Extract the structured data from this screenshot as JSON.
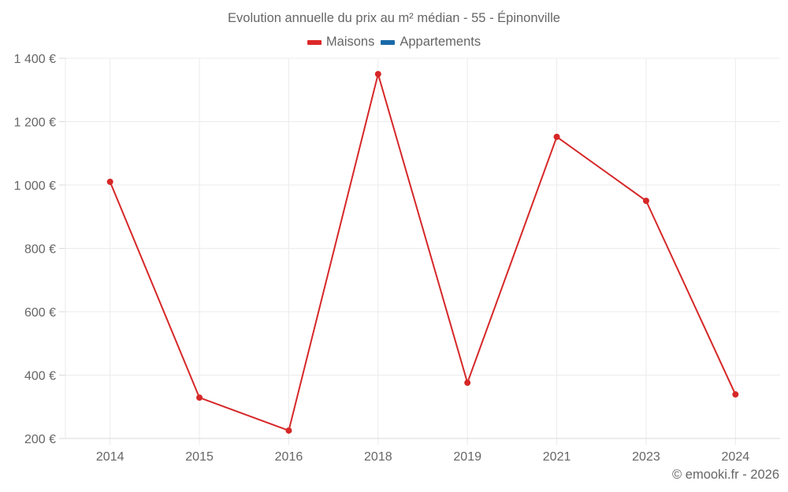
{
  "title": "Evolution annuelle du prix au m² médian - 55 - Épinonville",
  "legend": [
    {
      "label": "Maisons",
      "color": "#dd2828"
    },
    {
      "label": "Appartements",
      "color": "#1a6aa8"
    }
  ],
  "credit": "© emooki.fr - 2026",
  "colors": {
    "line": "#d62728",
    "grid": "#ebebeb",
    "axis": "#d9d9d9",
    "text": "#666666"
  },
  "chart_data": {
    "type": "line",
    "title": "Evolution annuelle du prix au m² médian - 55 - Épinonville",
    "xlabel": "",
    "ylabel": "",
    "categories": [
      "2014",
      "2015",
      "2016",
      "2018",
      "2019",
      "2021",
      "2023",
      "2024"
    ],
    "series": [
      {
        "name": "Maisons",
        "color": "#dd2828",
        "values": [
          1010,
          329,
          225,
          1350,
          376,
          1152,
          950,
          339
        ]
      },
      {
        "name": "Appartements",
        "color": "#1a6aa8",
        "values": []
      }
    ],
    "yticks": [
      200,
      400,
      600,
      800,
      1000,
      1200,
      1400
    ],
    "ytick_labels": [
      "200 €",
      "400 €",
      "600 €",
      "800 €",
      "1 000 €",
      "1 200 €",
      "1 400 €"
    ],
    "ylim": [
      200,
      1400
    ],
    "grid": true,
    "legend_position": "top"
  }
}
